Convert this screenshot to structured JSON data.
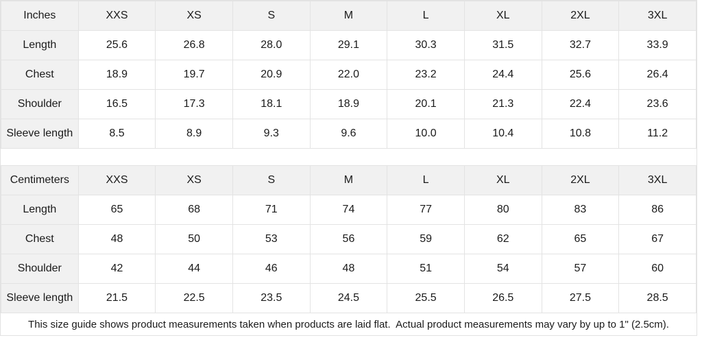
{
  "colors": {
    "header_fill": "#f1f1f1",
    "label_column_fill": "#f1f1f1",
    "cell_fill": "#ffffff",
    "border": "#e3e3e3",
    "text": "#1a1a1a"
  },
  "tables": [
    {
      "unit_label": "Inches",
      "sizes": [
        "XXS",
        "XS",
        "S",
        "M",
        "L",
        "XL",
        "2XL",
        "3XL"
      ],
      "rows": [
        {
          "label": "Length",
          "values": [
            "25.6",
            "26.8",
            "28.0",
            "29.1",
            "30.3",
            "31.5",
            "32.7",
            "33.9"
          ]
        },
        {
          "label": "Chest",
          "values": [
            "18.9",
            "19.7",
            "20.9",
            "22.0",
            "23.2",
            "24.4",
            "25.6",
            "26.4"
          ]
        },
        {
          "label": "Shoulder",
          "values": [
            "16.5",
            "17.3",
            "18.1",
            "18.9",
            "20.1",
            "21.3",
            "22.4",
            "23.6"
          ]
        },
        {
          "label": "Sleeve length",
          "values": [
            "8.5",
            "8.9",
            "9.3",
            "9.6",
            "10.0",
            "10.4",
            "10.8",
            "11.2"
          ]
        }
      ]
    },
    {
      "unit_label": "Centimeters",
      "sizes": [
        "XXS",
        "XS",
        "S",
        "M",
        "L",
        "XL",
        "2XL",
        "3XL"
      ],
      "rows": [
        {
          "label": "Length",
          "values": [
            "65",
            "68",
            "71",
            "74",
            "77",
            "80",
            "83",
            "86"
          ]
        },
        {
          "label": "Chest",
          "values": [
            "48",
            "50",
            "53",
            "56",
            "59",
            "62",
            "65",
            "67"
          ]
        },
        {
          "label": "Shoulder",
          "values": [
            "42",
            "44",
            "46",
            "48",
            "51",
            "54",
            "57",
            "60"
          ]
        },
        {
          "label": "Sleeve length",
          "values": [
            "21.5",
            "22.5",
            "23.5",
            "24.5",
            "25.5",
            "26.5",
            "27.5",
            "28.5"
          ]
        }
      ]
    }
  ],
  "footer_note": "This size guide shows product measurements taken when products are laid flat.  Actual product measurements may vary by up to 1\" (2.5cm)."
}
